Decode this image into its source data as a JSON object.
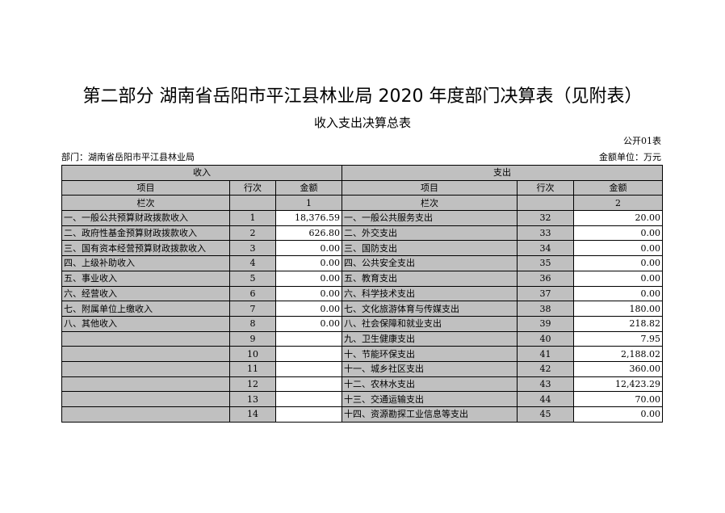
{
  "title": "第二部分  湖南省岳阳市平江县林业局 2020 年度部门决算表（见附表）",
  "subtitle": "收入支出决算总表",
  "table_no": "公开01表",
  "department": "部门：湖南省岳阳市平江县林业局",
  "unit": "金额单位：万元",
  "headers": {
    "income": "收入",
    "expense": "支出",
    "item": "项目",
    "row_no": "行次",
    "amount": "金额",
    "col_label": "栏次",
    "col1": "1",
    "col2": "2"
  },
  "rows": [
    {
      "in_item": "一、一般公共预算财政拨款收入",
      "in_no": "1",
      "in_amt": "18,376.59",
      "ex_item": "一、一般公共服务支出",
      "ex_no": "32",
      "ex_amt": "20.00"
    },
    {
      "in_item": "二、政府性基金预算财政拨款收入",
      "in_no": "2",
      "in_amt": "626.80",
      "ex_item": "二、外交支出",
      "ex_no": "33",
      "ex_amt": "0.00"
    },
    {
      "in_item": "三、国有资本经营预算财政拨款收入",
      "in_no": "3",
      "in_amt": "0.00",
      "ex_item": "三、国防支出",
      "ex_no": "34",
      "ex_amt": "0.00"
    },
    {
      "in_item": "四、上级补助收入",
      "in_no": "4",
      "in_amt": "0.00",
      "ex_item": "四、公共安全支出",
      "ex_no": "35",
      "ex_amt": "0.00"
    },
    {
      "in_item": "五、事业收入",
      "in_no": "5",
      "in_amt": "0.00",
      "ex_item": "五、教育支出",
      "ex_no": "36",
      "ex_amt": "0.00"
    },
    {
      "in_item": "六、经营收入",
      "in_no": "6",
      "in_amt": "0.00",
      "ex_item": "六、科学技术支出",
      "ex_no": "37",
      "ex_amt": "0.00"
    },
    {
      "in_item": "七、附属单位上缴收入",
      "in_no": "7",
      "in_amt": "0.00",
      "ex_item": "七、文化旅游体育与传媒支出",
      "ex_no": "38",
      "ex_amt": "180.00"
    },
    {
      "in_item": "八、其他收入",
      "in_no": "8",
      "in_amt": "0.00",
      "ex_item": "八、社会保障和就业支出",
      "ex_no": "39",
      "ex_amt": "218.82"
    },
    {
      "in_item": "",
      "in_no": "9",
      "in_amt": "",
      "ex_item": "九、卫生健康支出",
      "ex_no": "40",
      "ex_amt": "7.95"
    },
    {
      "in_item": "",
      "in_no": "10",
      "in_amt": "",
      "ex_item": "十、节能环保支出",
      "ex_no": "41",
      "ex_amt": "2,188.02"
    },
    {
      "in_item": "",
      "in_no": "11",
      "in_amt": "",
      "ex_item": "十一、城乡社区支出",
      "ex_no": "42",
      "ex_amt": "360.00"
    },
    {
      "in_item": "",
      "in_no": "12",
      "in_amt": "",
      "ex_item": "十二、农林水支出",
      "ex_no": "43",
      "ex_amt": "12,423.29"
    },
    {
      "in_item": "",
      "in_no": "13",
      "in_amt": "",
      "ex_item": "十三、交通运输支出",
      "ex_no": "44",
      "ex_amt": "70.00"
    },
    {
      "in_item": "",
      "in_no": "14",
      "in_amt": "",
      "ex_item": "十四、资源勘探工业信息等支出",
      "ex_no": "45",
      "ex_amt": "0.00"
    }
  ]
}
